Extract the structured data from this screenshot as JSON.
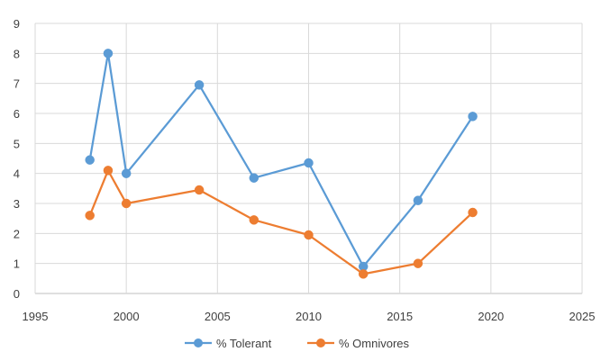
{
  "chart_data": {
    "type": "line",
    "title": "",
    "xlabel": "",
    "ylabel": "",
    "xlim": [
      1995,
      2025
    ],
    "ylim": [
      0,
      9
    ],
    "x_ticks": [
      1995,
      2000,
      2005,
      2010,
      2015,
      2020,
      2025
    ],
    "y_ticks": [
      0,
      1,
      2,
      3,
      4,
      5,
      6,
      7,
      8,
      9
    ],
    "grid": true,
    "legend_position": "bottom",
    "series": [
      {
        "name": "% Tolerant",
        "color": "#5B9BD5",
        "marker": "circle",
        "points": [
          {
            "x": 1998,
            "y": 4.45
          },
          {
            "x": 1999,
            "y": 8.0
          },
          {
            "x": 2000,
            "y": 4.0
          },
          {
            "x": 2004,
            "y": 6.95
          },
          {
            "x": 2007,
            "y": 3.85
          },
          {
            "x": 2010,
            "y": 4.35
          },
          {
            "x": 2013,
            "y": 0.9
          },
          {
            "x": 2016,
            "y": 3.1
          },
          {
            "x": 2019,
            "y": 5.9
          }
        ]
      },
      {
        "name": "% Omnivores",
        "color": "#ED7D31",
        "marker": "circle",
        "points": [
          {
            "x": 1998,
            "y": 2.6
          },
          {
            "x": 1999,
            "y": 4.1
          },
          {
            "x": 2000,
            "y": 3.0
          },
          {
            "x": 2004,
            "y": 3.45
          },
          {
            "x": 2007,
            "y": 2.45
          },
          {
            "x": 2010,
            "y": 1.95
          },
          {
            "x": 2013,
            "y": 0.65
          },
          {
            "x": 2016,
            "y": 1.0
          },
          {
            "x": 2019,
            "y": 2.7
          }
        ]
      }
    ]
  }
}
